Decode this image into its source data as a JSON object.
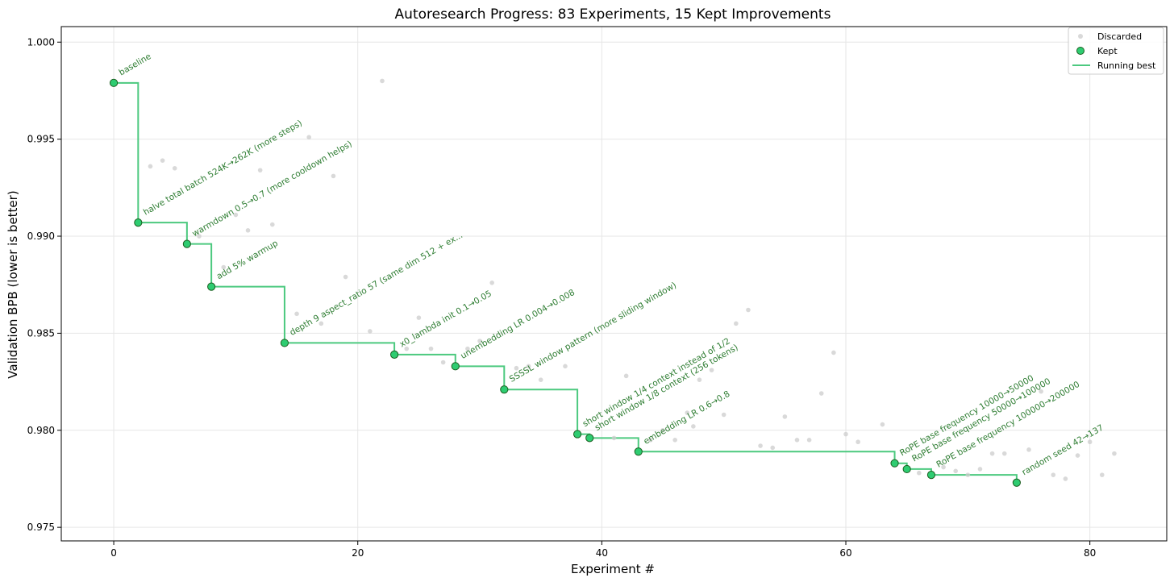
{
  "chart_data": {
    "type": "scatter",
    "title": "Autoresearch Progress: 83 Experiments, 15 Kept Improvements",
    "xlabel": "Experiment #",
    "ylabel": "Validation BPB (lower is better)",
    "xlim": [
      -4.3,
      86.3
    ],
    "ylim": [
      0.9743,
      1.0008
    ],
    "xticks": [
      0,
      20,
      40,
      60,
      80
    ],
    "yticks": [
      0.975,
      0.98,
      0.985,
      0.99,
      0.995,
      1.0
    ],
    "xtick_labels": [
      "0",
      "20",
      "40",
      "60",
      "80"
    ],
    "ytick_labels": [
      "0.975",
      "0.980",
      "0.985",
      "0.990",
      "0.995",
      "1.000"
    ],
    "grid": true,
    "legend_position": "top-right",
    "legend": {
      "discarded": "Discarded",
      "kept": "Kept",
      "running_best": "Running best"
    },
    "colors": {
      "kept_fill": "#2ecc71",
      "kept_edge": "#1b5e20",
      "line": "#4cc97f",
      "discarded": "#cccccc",
      "annotation": "#2e7d32"
    },
    "series": [
      {
        "name": "Discarded",
        "points": [
          {
            "x": 3,
            "y": 0.9936
          },
          {
            "x": 4,
            "y": 0.9939
          },
          {
            "x": 5,
            "y": 0.9935
          },
          {
            "x": 7,
            "y": 0.99
          },
          {
            "x": 9,
            "y": 0.9884
          },
          {
            "x": 10,
            "y": 0.9911
          },
          {
            "x": 11,
            "y": 0.9903
          },
          {
            "x": 12,
            "y": 0.9934
          },
          {
            "x": 13,
            "y": 0.9906
          },
          {
            "x": 15,
            "y": 0.986
          },
          {
            "x": 16,
            "y": 0.9951
          },
          {
            "x": 17,
            "y": 0.9855
          },
          {
            "x": 18,
            "y": 0.9931
          },
          {
            "x": 19,
            "y": 0.9879
          },
          {
            "x": 21,
            "y": 0.9851
          },
          {
            "x": 22,
            "y": 0.998
          },
          {
            "x": 24,
            "y": 0.9842
          },
          {
            "x": 25,
            "y": 0.9858
          },
          {
            "x": 26,
            "y": 0.9842
          },
          {
            "x": 27,
            "y": 0.9835
          },
          {
            "x": 29,
            "y": 0.9842
          },
          {
            "x": 30,
            "y": 0.9846
          },
          {
            "x": 31,
            "y": 0.9876
          },
          {
            "x": 33,
            "y": 0.9832
          },
          {
            "x": 34,
            "y": 0.9833
          },
          {
            "x": 35,
            "y": 0.9826
          },
          {
            "x": 37,
            "y": 0.9833
          },
          {
            "x": 41,
            "y": 0.9796
          },
          {
            "x": 42,
            "y": 0.9828
          },
          {
            "x": 44,
            "y": 0.9795
          },
          {
            "x": 45,
            "y": 0.98
          },
          {
            "x": 46,
            "y": 0.9795
          },
          {
            "x": 47,
            "y": 0.9809
          },
          {
            "x": 47.5,
            "y": 0.9802
          },
          {
            "x": 48,
            "y": 0.9826
          },
          {
            "x": 49,
            "y": 0.9831
          },
          {
            "x": 50,
            "y": 0.9808
          },
          {
            "x": 51,
            "y": 0.9855
          },
          {
            "x": 52,
            "y": 0.9862
          },
          {
            "x": 53,
            "y": 0.9792
          },
          {
            "x": 54,
            "y": 0.9791
          },
          {
            "x": 55,
            "y": 0.9807
          },
          {
            "x": 56,
            "y": 0.9795
          },
          {
            "x": 57,
            "y": 0.9795
          },
          {
            "x": 58,
            "y": 0.9819
          },
          {
            "x": 59,
            "y": 0.984
          },
          {
            "x": 60,
            "y": 0.9798
          },
          {
            "x": 61,
            "y": 0.9794
          },
          {
            "x": 63,
            "y": 0.9803
          },
          {
            "x": 66,
            "y": 0.9778
          },
          {
            "x": 68,
            "y": 0.9781
          },
          {
            "x": 69,
            "y": 0.9779
          },
          {
            "x": 70,
            "y": 0.9777
          },
          {
            "x": 71,
            "y": 0.978
          },
          {
            "x": 72,
            "y": 0.9788
          },
          {
            "x": 73,
            "y": 0.9788
          },
          {
            "x": 75,
            "y": 0.979
          },
          {
            "x": 76,
            "y": 0.982
          },
          {
            "x": 77,
            "y": 0.9777
          },
          {
            "x": 78,
            "y": 0.9775
          },
          {
            "x": 79,
            "y": 0.9787
          },
          {
            "x": 80,
            "y": 0.9794
          },
          {
            "x": 81,
            "y": 0.9777
          },
          {
            "x": 82,
            "y": 0.9788
          }
        ]
      },
      {
        "name": "Kept",
        "points": [
          {
            "x": 0,
            "y": 0.9979,
            "label": "baseline"
          },
          {
            "x": 2,
            "y": 0.9907,
            "label": "halve total batch 524K→262K (more steps)"
          },
          {
            "x": 6,
            "y": 0.9896,
            "label": "warmdown 0.5→0.7 (more cooldown helps)"
          },
          {
            "x": 8,
            "y": 0.9874,
            "label": "add 5% warmup"
          },
          {
            "x": 14,
            "y": 0.9845,
            "label": "depth 9 aspect_ratio 57 (same dim 512 + ex..."
          },
          {
            "x": 23,
            "y": 0.9839,
            "label": "x0_lambda init 0.1→0.05"
          },
          {
            "x": 28,
            "y": 0.9833,
            "label": "unembedding LR 0.004→0.008"
          },
          {
            "x": 32,
            "y": 0.9821,
            "label": "SSSSL window pattern (more sliding window)"
          },
          {
            "x": 38,
            "y": 0.9798,
            "label": "short window 1/4 context instead of 1/2"
          },
          {
            "x": 39,
            "y": 0.9796,
            "label": "short window 1/8 context (256 tokens)"
          },
          {
            "x": 43,
            "y": 0.9789,
            "label": "embedding LR 0.6→0.8"
          },
          {
            "x": 64,
            "y": 0.9783,
            "label": "RoPE base frequency 10000→50000"
          },
          {
            "x": 65,
            "y": 0.978,
            "label": "RoPE base frequency 50000→100000"
          },
          {
            "x": 67,
            "y": 0.9777,
            "label": "RoPE base frequency 100000→200000"
          },
          {
            "x": 74,
            "y": 0.9773,
            "label": "random seed 42→137"
          }
        ]
      },
      {
        "name": "Running best",
        "style": "step-post",
        "extends_to_x": 74
      }
    ]
  }
}
